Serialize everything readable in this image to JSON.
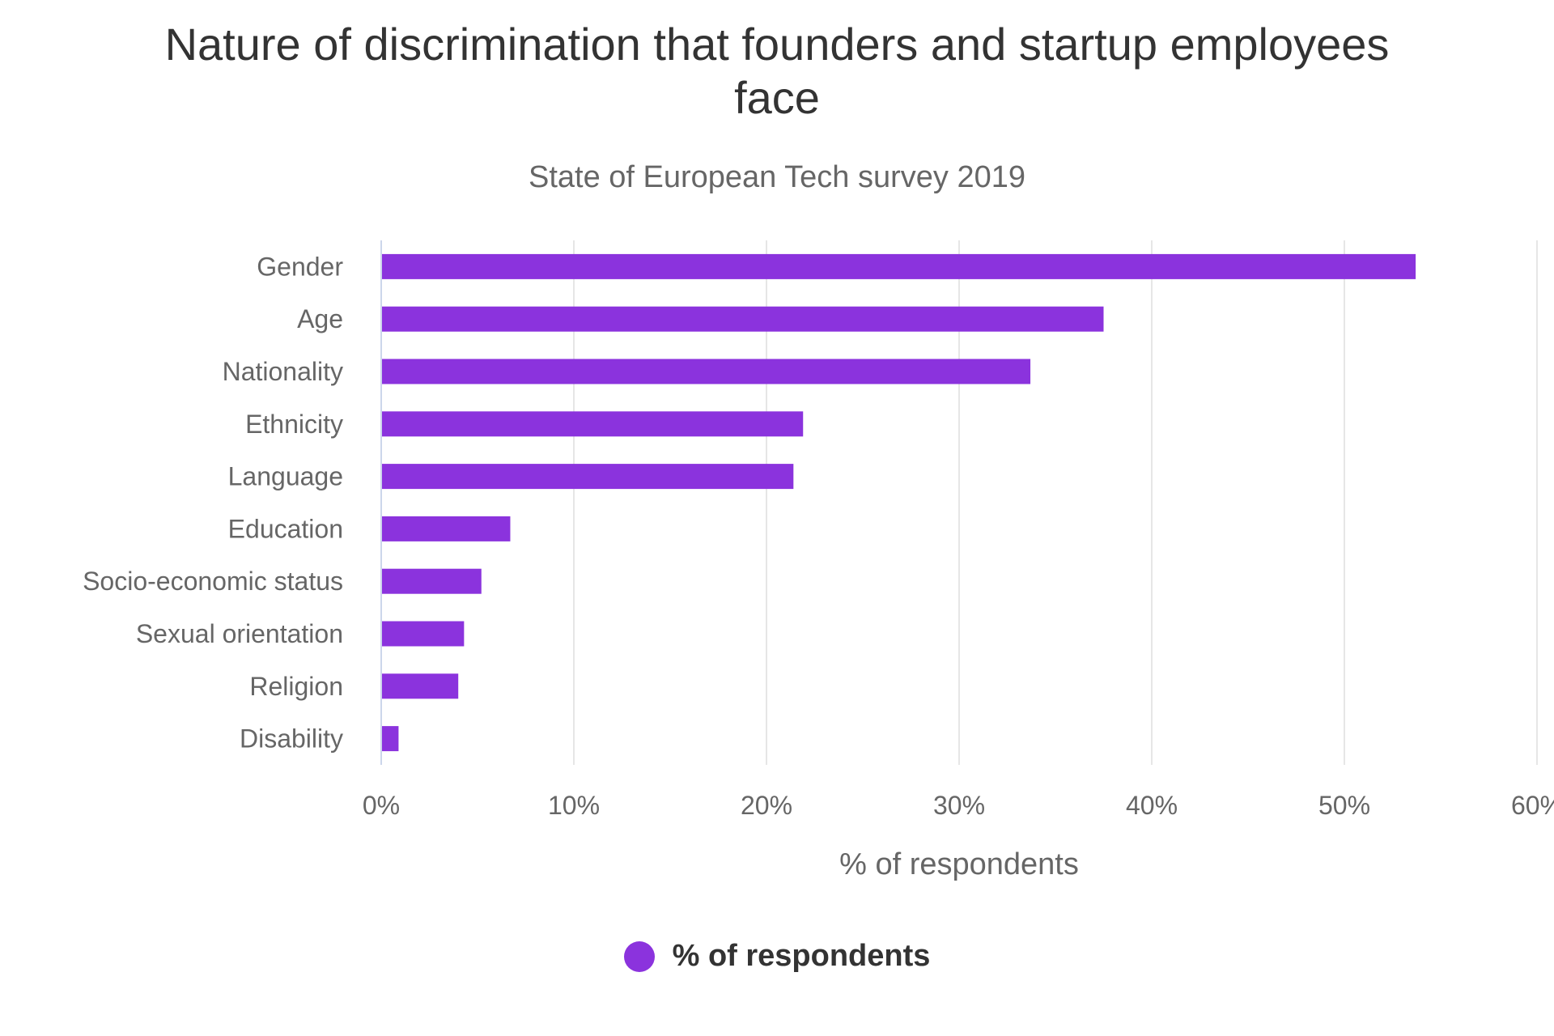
{
  "chart_data": {
    "type": "bar",
    "orientation": "horizontal",
    "title": "Nature of discrimination that founders and startup employees face",
    "subtitle": "State of European Tech survey 2019",
    "categories": [
      "Gender",
      "Age",
      "Nationality",
      "Ethnicity",
      "Language",
      "Education",
      "Socio-economic status",
      "Sexual orientation",
      "Religion",
      "Disability"
    ],
    "series": [
      {
        "name": "% of respondents",
        "color": "#8b33dd",
        "values": [
          53.7,
          37.5,
          33.7,
          21.9,
          21.4,
          6.7,
          5.2,
          4.3,
          4.0,
          0.9
        ]
      }
    ],
    "xlabel": "% of respondents",
    "ylabel": "",
    "xlim": [
      0,
      60
    ],
    "xticks": [
      0,
      10,
      20,
      30,
      40,
      50,
      60
    ],
    "tick_suffix": "%",
    "grid": "vertical",
    "legend": "bottom-center"
  }
}
